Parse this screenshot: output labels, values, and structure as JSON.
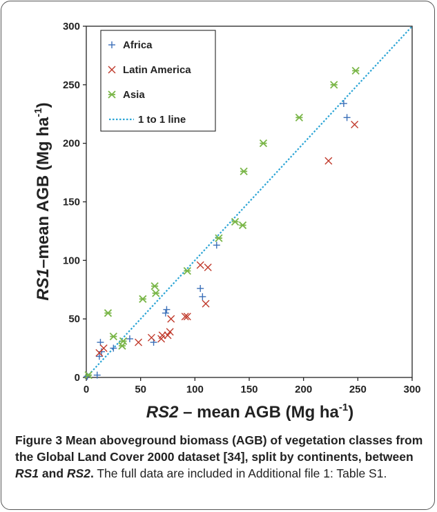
{
  "chart_data": {
    "type": "scatter",
    "xlabel_italic": "RS2",
    "xlabel_rest": " – mean AGB (Mg ha",
    "xlabel_sup": "-1",
    "xlabel_close": ")",
    "ylabel_italic": "RS1",
    "ylabel_rest": "–mean AGB (Mg ha",
    "ylabel_sup": "-1",
    "ylabel_close": ")",
    "xlim": [
      0,
      300
    ],
    "ylim": [
      0,
      300
    ],
    "xticks": [
      0,
      50,
      100,
      150,
      200,
      250,
      300
    ],
    "yticks": [
      0,
      50,
      100,
      150,
      200,
      250,
      300
    ],
    "legend_position": "top-left",
    "series": [
      {
        "name": "Africa",
        "marker": "plus",
        "color": "#3a6fb8",
        "points": [
          [
            1,
            1
          ],
          [
            10,
            2
          ],
          [
            12,
            18
          ],
          [
            13,
            30
          ],
          [
            14,
            22
          ],
          [
            25,
            25
          ],
          [
            40,
            33
          ],
          [
            62,
            30
          ],
          [
            73,
            55
          ],
          [
            74,
            58
          ],
          [
            105,
            76
          ],
          [
            107,
            69
          ],
          [
            120,
            113
          ],
          [
            237,
            234
          ],
          [
            240,
            222
          ]
        ]
      },
      {
        "name": "Latin America",
        "marker": "x",
        "color": "#c0392b",
        "points": [
          [
            12,
            21
          ],
          [
            16,
            25
          ],
          [
            48,
            30
          ],
          [
            60,
            34
          ],
          [
            69,
            33
          ],
          [
            70,
            36
          ],
          [
            75,
            36
          ],
          [
            77,
            39
          ],
          [
            78,
            50
          ],
          [
            91,
            52
          ],
          [
            93,
            52
          ],
          [
            105,
            96
          ],
          [
            110,
            63
          ],
          [
            112,
            94
          ],
          [
            223,
            185
          ],
          [
            247,
            216
          ]
        ]
      },
      {
        "name": "Asia",
        "marker": "asterisk",
        "color": "#7ab648",
        "points": [
          [
            2,
            2
          ],
          [
            20,
            55
          ],
          [
            25,
            35
          ],
          [
            33,
            27
          ],
          [
            34,
            31
          ],
          [
            52,
            67
          ],
          [
            63,
            78
          ],
          [
            64,
            72
          ],
          [
            93,
            91
          ],
          [
            122,
            119
          ],
          [
            137,
            133
          ],
          [
            144,
            130
          ],
          [
            145,
            176
          ],
          [
            163,
            200
          ],
          [
            196,
            222
          ],
          [
            228,
            250
          ],
          [
            248,
            262
          ]
        ]
      }
    ],
    "reference_line": {
      "name": "1 to 1 line",
      "color": "#2aa4d5",
      "from": [
        0,
        0
      ],
      "to": [
        300,
        300
      ]
    }
  },
  "caption": {
    "label": "Figure 3",
    "bold_text": " Mean aboveground biomass (AGB) of vegetation classes from the Global Land Cover 2000 dataset [34], split by continents, between ",
    "bold_it1": "RS1",
    "bold_and": " and ",
    "bold_it2": "RS2",
    "bold_end": ".",
    "normal_text": " The full data are included in Additional file 1: Table S1."
  }
}
